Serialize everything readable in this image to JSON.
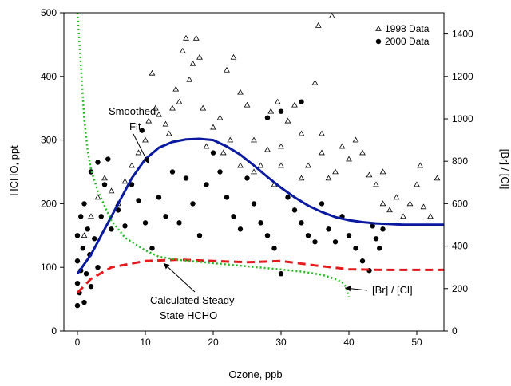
{
  "chart_data": {
    "type": "scatter",
    "xlabel": "Ozone, ppb",
    "ylabel": "HCHO, ppt",
    "y2label": "[Br] / [Cl]",
    "xlim": [
      -2,
      54
    ],
    "ylim": [
      0,
      500
    ],
    "y2lim": [
      0,
      1500
    ],
    "x_ticks": [
      0,
      10,
      20,
      30,
      40,
      50
    ],
    "y_ticks": [
      0,
      100,
      200,
      300,
      400,
      500
    ],
    "y2_ticks": [
      0,
      200,
      400,
      600,
      800,
      1000,
      1200,
      1400
    ],
    "grid": false,
    "legend": {
      "position": "top-right",
      "entries": [
        {
          "label": "1998 Data",
          "marker": "open-triangle"
        },
        {
          "label": "2000 Data",
          "marker": "filled-circle"
        }
      ]
    },
    "series": [
      {
        "name": "1998 Data",
        "marker": "open-triangle",
        "axis": "left",
        "points": [
          [
            1,
            150
          ],
          [
            2,
            180
          ],
          [
            3,
            210
          ],
          [
            4,
            240
          ],
          [
            5,
            220
          ],
          [
            6,
            200
          ],
          [
            7,
            235
          ],
          [
            8,
            260
          ],
          [
            9,
            280
          ],
          [
            10,
            300
          ],
          [
            10.5,
            330
          ],
          [
            11,
            405
          ],
          [
            11.5,
            350
          ],
          [
            12,
            340
          ],
          [
            13,
            325
          ],
          [
            13.5,
            310
          ],
          [
            14,
            350
          ],
          [
            14.5,
            380
          ],
          [
            15,
            360
          ],
          [
            15.5,
            440
          ],
          [
            16,
            460
          ],
          [
            16.5,
            395
          ],
          [
            17,
            420
          ],
          [
            17.5,
            460
          ],
          [
            18,
            430
          ],
          [
            18.5,
            350
          ],
          [
            19,
            290
          ],
          [
            20,
            320
          ],
          [
            21,
            335
          ],
          [
            21.5,
            280
          ],
          [
            22,
            410
          ],
          [
            22.5,
            300
          ],
          [
            23,
            430
          ],
          [
            24,
            375
          ],
          [
            25,
            355
          ],
          [
            26,
            300
          ],
          [
            27,
            260
          ],
          [
            28,
            285
          ],
          [
            28.5,
            345
          ],
          [
            29,
            230
          ],
          [
            29.5,
            360
          ],
          [
            30,
            290
          ],
          [
            31,
            330
          ],
          [
            32,
            355
          ],
          [
            33,
            310
          ],
          [
            34,
            260
          ],
          [
            35,
            390
          ],
          [
            35.5,
            480
          ],
          [
            36,
            310
          ],
          [
            37,
            240
          ],
          [
            37.5,
            495
          ],
          [
            38,
            250
          ],
          [
            39,
            290
          ],
          [
            40,
            270
          ],
          [
            41,
            300
          ],
          [
            42,
            280
          ],
          [
            43,
            245
          ],
          [
            44,
            230
          ],
          [
            45,
            200
          ],
          [
            46,
            190
          ],
          [
            47,
            210
          ],
          [
            48,
            180
          ],
          [
            49,
            200
          ],
          [
            50,
            230
          ],
          [
            50.5,
            260
          ],
          [
            51,
            195
          ],
          [
            52,
            180
          ],
          [
            53,
            240
          ],
          [
            24,
            260
          ],
          [
            26,
            250
          ],
          [
            30,
            260
          ],
          [
            33,
            240
          ],
          [
            36,
            280
          ],
          [
            45,
            250
          ]
        ]
      },
      {
        "name": "2000 Data",
        "marker": "filled-circle",
        "axis": "left",
        "points": [
          [
            0,
            40
          ],
          [
            0,
            75
          ],
          [
            0,
            110
          ],
          [
            0,
            150
          ],
          [
            0.3,
            60
          ],
          [
            0.5,
            180
          ],
          [
            0.5,
            95
          ],
          [
            0.8,
            130
          ],
          [
            1,
            45
          ],
          [
            1,
            200
          ],
          [
            1.3,
            90
          ],
          [
            1.5,
            160
          ],
          [
            1.8,
            120
          ],
          [
            2,
            70
          ],
          [
            2,
            250
          ],
          [
            2.5,
            145
          ],
          [
            3,
            100
          ],
          [
            3,
            265
          ],
          [
            3.5,
            180
          ],
          [
            4,
            230
          ],
          [
            4.5,
            270
          ],
          [
            5,
            160
          ],
          [
            6,
            190
          ],
          [
            7,
            165
          ],
          [
            8,
            230
          ],
          [
            9,
            205
          ],
          [
            9.5,
            315
          ],
          [
            10,
            170
          ],
          [
            11,
            130
          ],
          [
            12,
            210
          ],
          [
            13,
            180
          ],
          [
            14,
            250
          ],
          [
            15,
            170
          ],
          [
            16,
            240
          ],
          [
            17,
            200
          ],
          [
            18,
            150
          ],
          [
            19,
            230
          ],
          [
            20,
            280
          ],
          [
            21,
            250
          ],
          [
            22,
            210
          ],
          [
            23,
            180
          ],
          [
            24,
            160
          ],
          [
            25,
            240
          ],
          [
            26,
            200
          ],
          [
            27,
            170
          ],
          [
            28,
            150
          ],
          [
            29,
            130
          ],
          [
            30,
            90
          ],
          [
            31,
            210
          ],
          [
            32,
            190
          ],
          [
            33,
            170
          ],
          [
            34,
            150
          ],
          [
            35,
            140
          ],
          [
            36,
            200
          ],
          [
            37,
            160
          ],
          [
            38,
            140
          ],
          [
            39,
            180
          ],
          [
            40,
            150
          ],
          [
            41,
            130
          ],
          [
            42,
            110
          ],
          [
            43,
            95
          ],
          [
            43.5,
            165
          ],
          [
            44,
            145
          ],
          [
            44.5,
            130
          ],
          [
            45,
            160
          ],
          [
            28,
            335
          ],
          [
            30,
            345
          ],
          [
            33,
            360
          ]
        ]
      },
      {
        "name": "Smoothed Fit",
        "type": "line",
        "axis": "left",
        "points": [
          [
            0,
            90
          ],
          [
            2,
            120
          ],
          [
            4,
            160
          ],
          [
            6,
            200
          ],
          [
            8,
            240
          ],
          [
            10,
            270
          ],
          [
            12,
            288
          ],
          [
            14,
            297
          ],
          [
            16,
            301
          ],
          [
            18,
            302
          ],
          [
            20,
            300
          ],
          [
            22,
            290
          ],
          [
            24,
            277
          ],
          [
            26,
            260
          ],
          [
            28,
            242
          ],
          [
            30,
            225
          ],
          [
            32,
            210
          ],
          [
            34,
            197
          ],
          [
            36,
            187
          ],
          [
            38,
            179
          ],
          [
            40,
            174
          ],
          [
            42,
            171
          ],
          [
            44,
            169
          ],
          [
            46,
            168
          ],
          [
            48,
            167
          ],
          [
            50,
            167
          ],
          [
            52,
            167
          ],
          [
            54,
            167
          ]
        ]
      },
      {
        "name": "Calculated Steady State HCHO",
        "type": "line",
        "axis": "left",
        "points": [
          [
            0,
            60
          ],
          [
            2,
            82
          ],
          [
            5,
            100
          ],
          [
            8,
            106
          ],
          [
            10,
            110
          ],
          [
            15,
            112
          ],
          [
            20,
            110
          ],
          [
            25,
            108
          ],
          [
            30,
            110
          ],
          [
            35,
            103
          ],
          [
            40,
            97
          ],
          [
            45,
            96
          ],
          [
            50,
            96
          ],
          [
            54,
            96
          ]
        ]
      },
      {
        "name": "[Br] / [Cl]",
        "type": "line",
        "axis": "right",
        "points": [
          [
            0,
            1500
          ],
          [
            0.5,
            1250
          ],
          [
            1,
            1000
          ],
          [
            1.5,
            850
          ],
          [
            2,
            760
          ],
          [
            3,
            660
          ],
          [
            4,
            590
          ],
          [
            5,
            520
          ],
          [
            6,
            480
          ],
          [
            7,
            440
          ],
          [
            8,
            420
          ],
          [
            9,
            400
          ],
          [
            10,
            380
          ],
          [
            12,
            350
          ],
          [
            15,
            335
          ],
          [
            20,
            320
          ],
          [
            25,
            305
          ],
          [
            30,
            290
          ],
          [
            33,
            280
          ],
          [
            36,
            265
          ],
          [
            38,
            245
          ],
          [
            39,
            230
          ],
          [
            39.5,
            210
          ],
          [
            40,
            160
          ]
        ]
      }
    ],
    "annotations": [
      {
        "text_lines": [
          "Smoothed",
          "Fit"
        ]
      },
      {
        "text_lines": [
          "Calculated Steady",
          "State HCHO"
        ]
      },
      {
        "text_lines": [
          "[Br] / [Cl]"
        ]
      }
    ]
  }
}
